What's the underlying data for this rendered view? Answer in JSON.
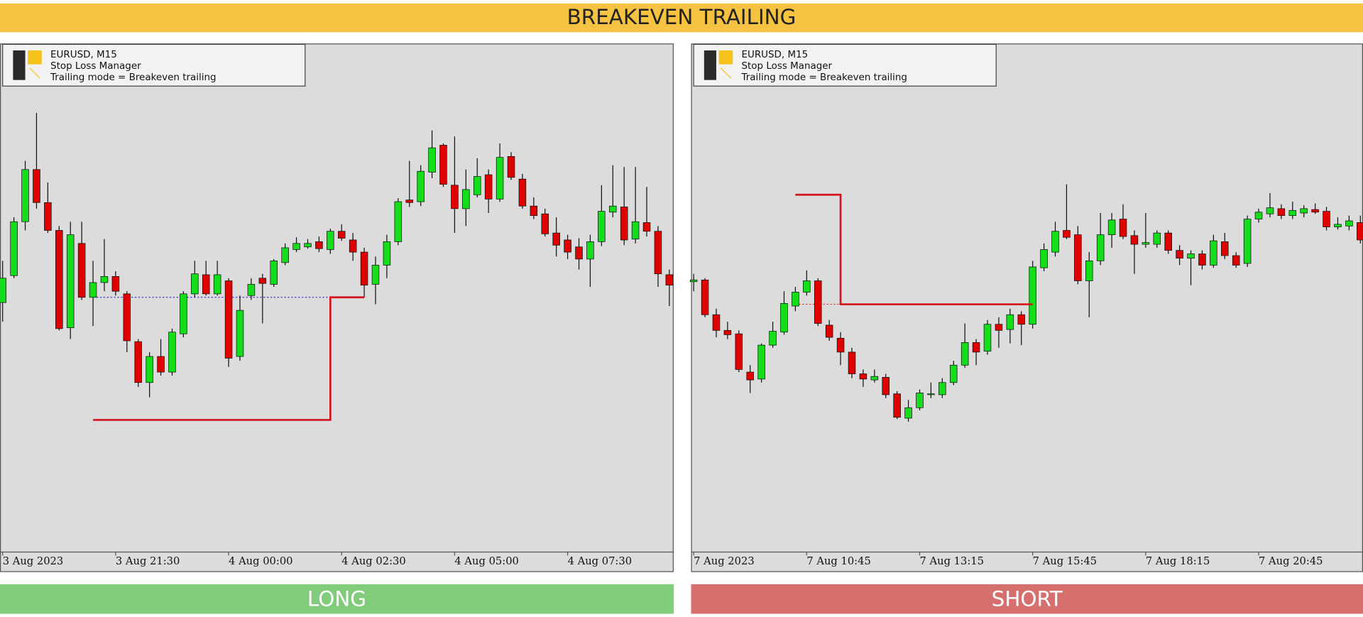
{
  "title": "BREAKEVEN TRAILING",
  "chart_data": [
    {
      "type": "candlestick",
      "label": "LONG",
      "info": [
        "EURUSD, M15",
        "Stop Loss Manager",
        "Trailing mode = Breakeven trailing"
      ],
      "categories": [
        "3 Aug 2023",
        null,
        null,
        null,
        null,
        null,
        null,
        null,
        null,
        null,
        "3 Aug 21:30",
        null,
        null,
        null,
        null,
        null,
        null,
        null,
        null,
        null,
        "4 Aug 00:00",
        null,
        null,
        null,
        null,
        null,
        null,
        null,
        null,
        null,
        "4 Aug 02:30",
        null,
        null,
        null,
        null,
        null,
        null,
        null,
        null,
        null,
        "4 Aug 05:00",
        null,
        null,
        null,
        null,
        null,
        null,
        null,
        null,
        null,
        "4 Aug 07:30",
        null,
        null,
        null,
        null,
        null,
        null,
        null,
        null,
        null
      ],
      "open": [
        287,
        318,
        380,
        440,
        402,
        370,
        258,
        355,
        293,
        310,
        317,
        297,
        242,
        195,
        225,
        207,
        251,
        297,
        319,
        297,
        312,
        225,
        295,
        315,
        308,
        333,
        348,
        351,
        357,
        348,
        369,
        359,
        345,
        308,
        330,
        357,
        405,
        403,
        437,
        468,
        422,
        395,
        411,
        434,
        406,
        455,
        429,
        398,
        389,
        367,
        359,
        351,
        337,
        357,
        391,
        397,
        360,
        379,
        369,
        319
      ],
      "high": [
        335,
        385,
        450,
        505,
        425,
        375,
        380,
        380,
        335,
        360,
        323,
        300,
        245,
        230,
        245,
        257,
        300,
        335,
        335,
        335,
        315,
        295,
        315,
        320,
        337,
        355,
        362,
        360,
        363,
        372,
        377,
        367,
        350,
        340,
        365,
        407,
        450,
        445,
        485,
        470,
        478,
        440,
        453,
        440,
        470,
        460,
        435,
        408,
        395,
        385,
        365,
        361,
        365,
        422,
        445,
        443,
        443,
        420,
        375,
        325
      ],
      "low": [
        265,
        315,
        370,
        395,
        367,
        255,
        245,
        290,
        260,
        300,
        295,
        230,
        190,
        178,
        203,
        203,
        247,
        293,
        295,
        295,
        213,
        220,
        290,
        263,
        305,
        330,
        345,
        349,
        345,
        343,
        358,
        335,
        293,
        285,
        315,
        353,
        397,
        398,
        430,
        420,
        367,
        375,
        408,
        390,
        403,
        428,
        395,
        383,
        363,
        340,
        337,
        325,
        305,
        352,
        385,
        353,
        355,
        363,
        305,
        283
      ],
      "close": [
        315,
        380,
        440,
        402,
        370,
        257,
        365,
        293,
        310,
        317,
        300,
        243,
        195,
        225,
        207,
        253,
        297,
        320,
        297,
        319,
        223,
        278,
        308,
        309,
        335,
        350,
        355,
        355,
        349,
        369,
        361,
        345,
        307,
        330,
        357,
        403,
        402,
        438,
        465,
        423,
        395,
        417,
        432,
        406,
        454,
        431,
        398,
        387,
        366,
        353,
        345,
        337,
        357,
        392,
        398,
        359,
        380,
        369,
        320,
        307
      ],
      "up_color": "#14dd1a",
      "down_color": "#e00000",
      "ylim": [
        0,
        585
      ],
      "stop_loss": {
        "x": [
          8,
          29,
          29,
          32
        ],
        "values": [
          152,
          152,
          293,
          293
        ],
        "color": "#d4141c"
      },
      "entry": {
        "x": [
          8,
          32
        ],
        "values": [
          293,
          293
        ],
        "color": "#2020c8"
      },
      "label_color": "#80cc7a"
    },
    {
      "type": "candlestick",
      "label": "SHORT",
      "info": [
        "EURUSD, M15",
        "Stop Loss Manager",
        "Trailing mode = Breakeven trailing"
      ],
      "categories": [
        "7 Aug 2023",
        null,
        null,
        null,
        null,
        null,
        null,
        null,
        null,
        null,
        "7 Aug 10:45",
        null,
        null,
        null,
        null,
        null,
        null,
        null,
        null,
        null,
        "7 Aug 13:15",
        null,
        null,
        null,
        null,
        null,
        null,
        null,
        null,
        null,
        "7 Aug 15:45",
        null,
        null,
        null,
        null,
        null,
        null,
        null,
        null,
        null,
        "7 Aug 18:15",
        null,
        null,
        null,
        null,
        null,
        null,
        null,
        null,
        null,
        "7 Aug 20:45",
        null,
        null,
        null,
        null,
        null,
        null,
        null,
        null,
        null
      ],
      "open": [
        311,
        313,
        273,
        255,
        251,
        207,
        199,
        238,
        253,
        283,
        299,
        312,
        261,
        246,
        230,
        205,
        198,
        201,
        182,
        154,
        166,
        181,
        181,
        195,
        215,
        241,
        231,
        262,
        256,
        273,
        262,
        327,
        345,
        370,
        365,
        312,
        335,
        365,
        383,
        364,
        354,
        354,
        367,
        347,
        338,
        343,
        330,
        357,
        341,
        332,
        383,
        389,
        395,
        387,
        390,
        394,
        392,
        374,
        375,
        379
      ],
      "high": [
        320,
        315,
        280,
        265,
        255,
        215,
        240,
        265,
        300,
        305,
        324,
        315,
        267,
        253,
        235,
        210,
        210,
        205,
        185,
        175,
        187,
        195,
        200,
        220,
        263,
        245,
        267,
        270,
        280,
        277,
        335,
        355,
        380,
        423,
        375,
        345,
        390,
        390,
        400,
        370,
        390,
        370,
        370,
        353,
        347,
        347,
        365,
        367,
        345,
        387,
        395,
        413,
        400,
        403,
        399,
        401,
        397,
        385,
        387,
        387
      ],
      "low": [
        300,
        270,
        247,
        245,
        207,
        183,
        195,
        235,
        250,
        277,
        295,
        260,
        243,
        215,
        200,
        190,
        195,
        177,
        153,
        150,
        163,
        177,
        177,
        192,
        212,
        215,
        227,
        235,
        240,
        238,
        257,
        323,
        340,
        360,
        308,
        270,
        330,
        350,
        360,
        320,
        350,
        350,
        343,
        330,
        307,
        325,
        327,
        337,
        327,
        328,
        379,
        385,
        383,
        383,
        385,
        389,
        370,
        371,
        370,
        355
      ],
      "close": [
        313,
        273,
        255,
        250,
        210,
        198,
        238,
        254,
        286,
        299,
        312,
        263,
        247,
        230,
        205,
        199,
        202,
        181,
        155,
        166,
        183,
        182,
        195,
        215,
        241,
        230,
        262,
        255,
        273,
        262,
        328,
        348,
        369,
        362,
        312,
        335,
        365,
        382,
        363,
        354,
        356,
        367,
        347,
        338,
        343,
        330,
        358,
        341,
        330,
        383,
        391,
        396,
        387,
        393,
        395,
        391,
        374,
        377,
        381,
        359
      ],
      "up_color": "#14dd1a",
      "down_color": "#e00000",
      "ylim": [
        0,
        585
      ],
      "stop_loss": {
        "x": [
          9,
          13,
          13,
          30
        ],
        "values": [
          411,
          411,
          285,
          285
        ],
        "color": "#d4141c"
      },
      "entry": {
        "x": [
          9,
          30
        ],
        "values": [
          285,
          285
        ],
        "color": "#d4141c"
      },
      "label_color": "#d6706f"
    }
  ]
}
